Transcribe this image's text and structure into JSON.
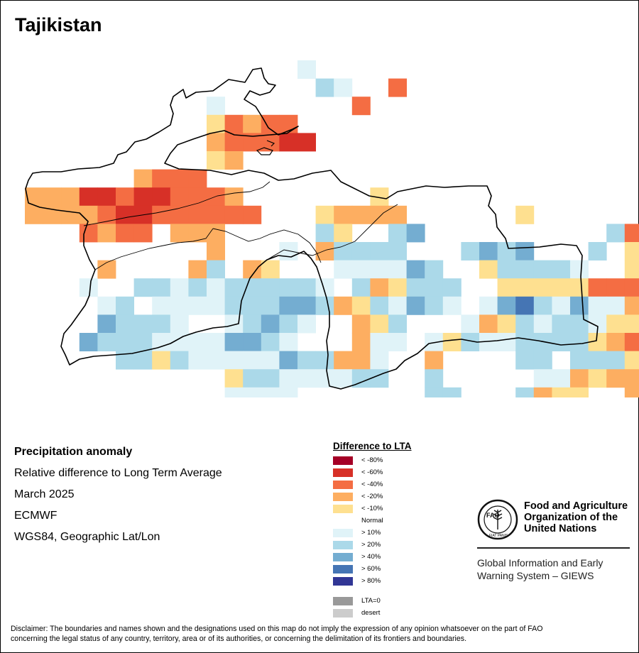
{
  "map": {
    "title": "Tajikistan",
    "colors": {
      "lt80": "#a50026",
      "lt60": "#d73027",
      "lt40": "#f46d43",
      "lt20": "#fdae61",
      "lt10": "#fee090",
      "normal": "#ffffff",
      "gt10": "#e0f3f8",
      "gt20": "#abd9e9",
      "gt40": "#74add1",
      "gt60": "#4575b4",
      "gt80": "#313695",
      "lta0": "#999999",
      "desert": "#cccccc"
    }
  },
  "info": {
    "line1": "Precipitation anomaly",
    "line2": "Relative difference to Long Term Average",
    "line3": "March 2025",
    "line4": "ECMWF",
    "line5": "WGS84, Geographic Lat/Lon"
  },
  "legend": {
    "title": "Difference to LTA",
    "normal_label": "Normal",
    "items": [
      {
        "label": "< -80%",
        "color": "#a50026"
      },
      {
        "label": "< -60%",
        "color": "#d73027"
      },
      {
        "label": "< -40%",
        "color": "#f46d43"
      },
      {
        "label": "< -20%",
        "color": "#fdae61"
      },
      {
        "label": "< -10%",
        "color": "#fee090"
      },
      {
        "label": "> 10%",
        "color": "#e0f3f8"
      },
      {
        "label": "> 20%",
        "color": "#abd9e9"
      },
      {
        "label": "> 40%",
        "color": "#74add1"
      },
      {
        "label": "> 60%",
        "color": "#4575b4"
      },
      {
        "label": "> 80%",
        "color": "#313695"
      },
      {
        "label": "LTA=0",
        "color": "#999999"
      },
      {
        "label": "desert",
        "color": "#cccccc"
      }
    ]
  },
  "org": {
    "name_line1": "Food and Agriculture",
    "name_line2": "Organization of the",
    "name_line3": "United Nations",
    "logo_text": "FAO",
    "logo_motto": "FIAT PANIS",
    "system_line1": "Global Information and Early",
    "system_line2": "Warning System – GIEWS"
  },
  "disclaimer": {
    "line1": "Disclaimer: The boundaries and names shown and the designations used on this map do not imply the expression of any opinion whatsoever on the part of FAO",
    "line2": "concerning the legal status of any country, territory, area or of its authorities, or concerning the delimitation of its frontiers and boundaries."
  }
}
